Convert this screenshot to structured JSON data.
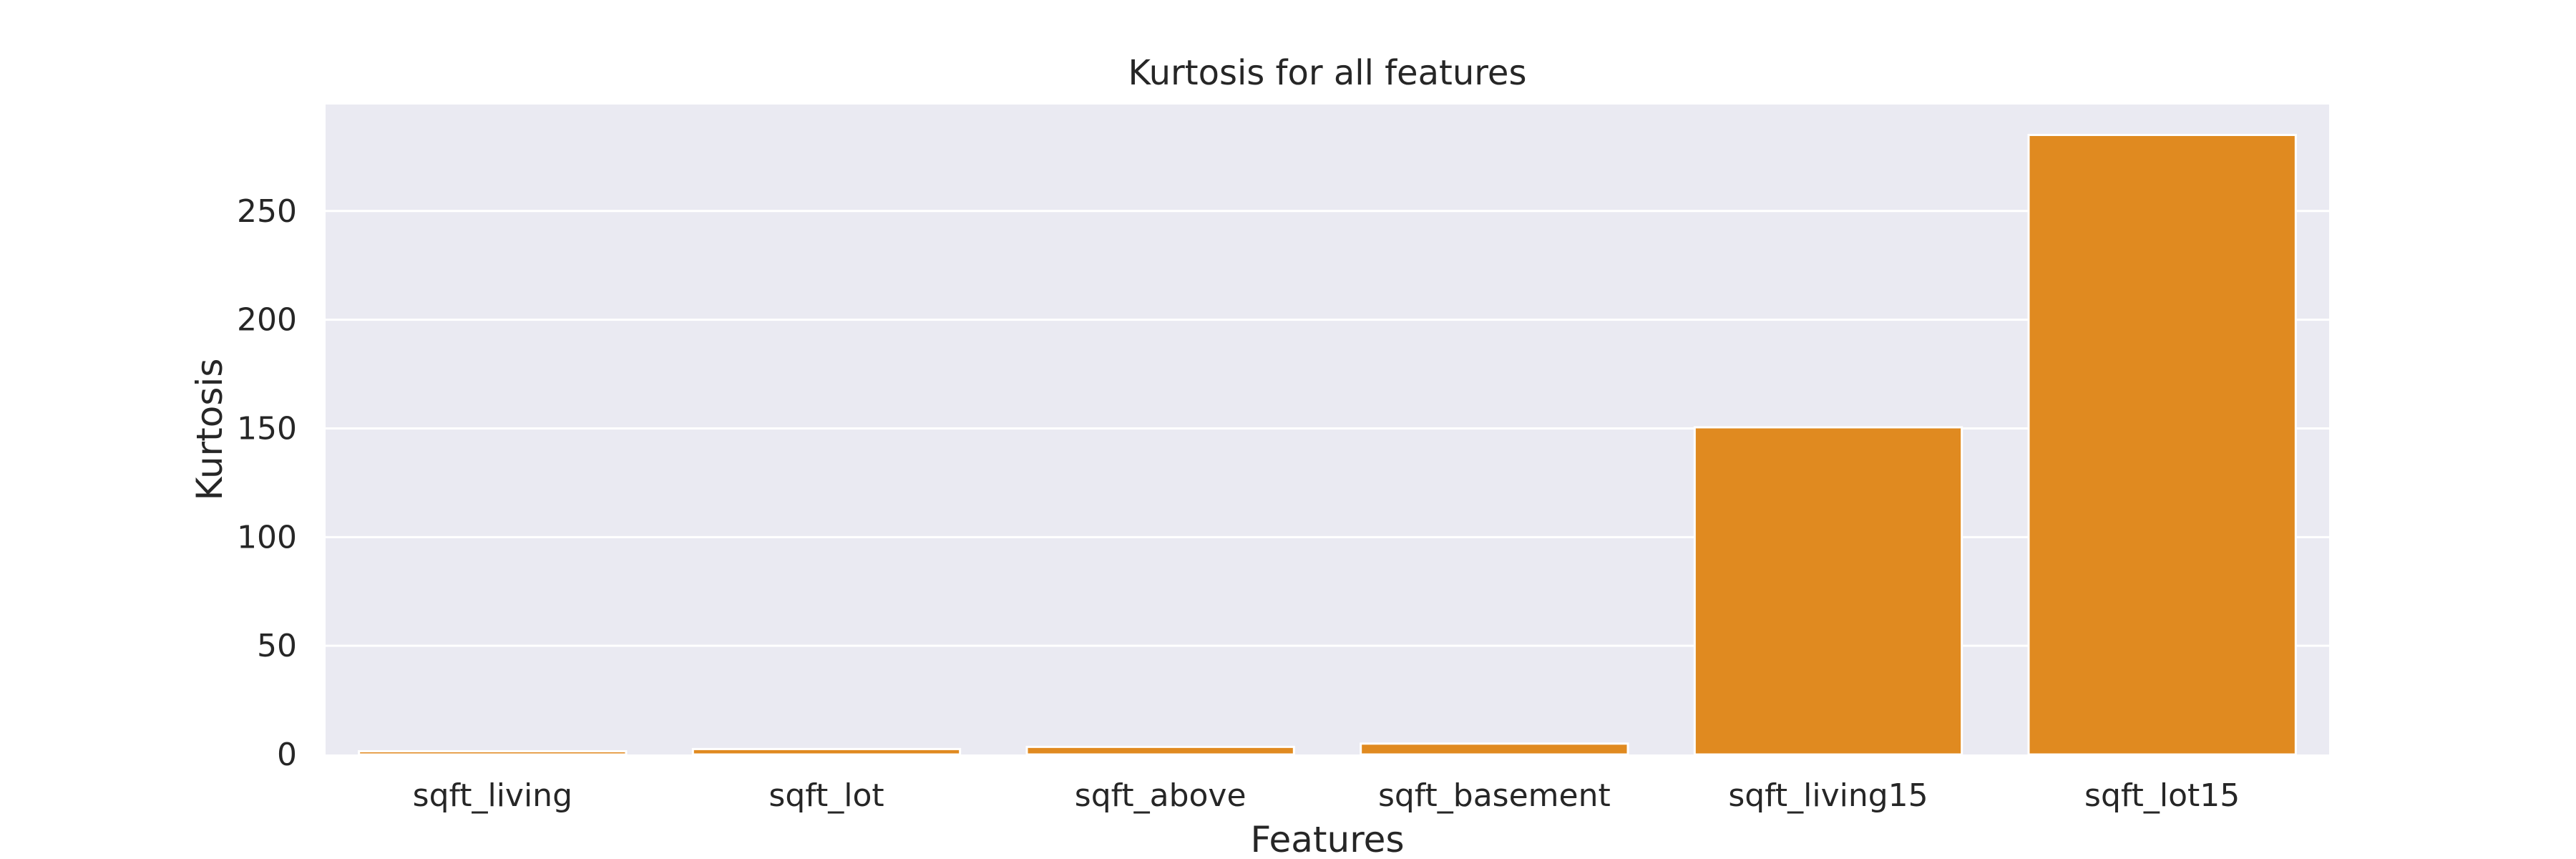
{
  "chart_data": {
    "type": "bar",
    "title": "Kurtosis for all features",
    "xlabel": "Features",
    "ylabel": "Kurtosis",
    "categories": [
      "sqft_living",
      "sqft_lot",
      "sqft_above",
      "sqft_basement",
      "sqft_living15",
      "sqft_lot15"
    ],
    "values": [
      1.5,
      2.5,
      3.5,
      5.0,
      150.5,
      285.0
    ],
    "ylim": [
      0,
      299
    ],
    "yticks": [
      0,
      50,
      100,
      150,
      200,
      250
    ],
    "grid": true,
    "legend": "none",
    "bar_color": "#e08a20",
    "background_color": "#eaeaf2"
  }
}
